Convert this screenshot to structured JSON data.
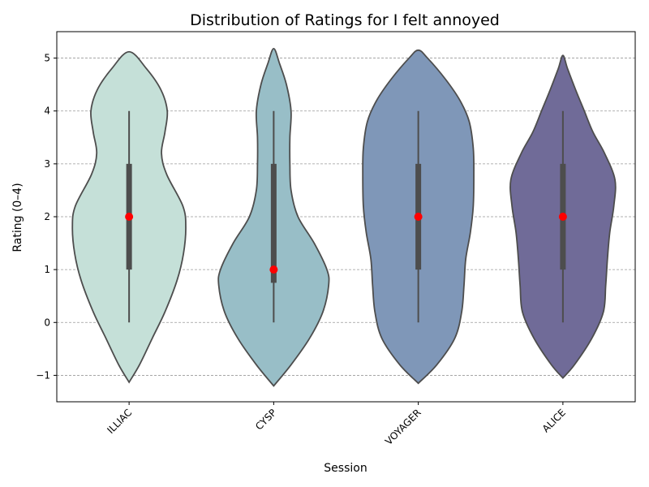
{
  "chart_data": {
    "type": "violin",
    "title": "Distribution of Ratings for I felt annoyed",
    "xlabel": "Session",
    "ylabel": "Rating (0–4)",
    "ylim": [
      -1.5,
      5.5
    ],
    "yticks": [
      -1,
      0,
      1,
      2,
      3,
      4,
      5
    ],
    "ytick_labels": [
      "−1",
      "0",
      "1",
      "2",
      "3",
      "4",
      "5"
    ],
    "grid": true,
    "categories": [
      "ILLIAC",
      "CYSP",
      "VOYAGER",
      "ALICE"
    ],
    "colors": [
      "#c5e0d8",
      "#98bec7",
      "#7f97b8",
      "#706b98"
    ],
    "median_color": "#ff0000",
    "box_color": "#4d4d4d",
    "edge_color": "#4d4d4d",
    "sessions": [
      {
        "name": "ILLIAC",
        "min": 0,
        "q1": 1,
        "median": 2,
        "q3": 3,
        "max": 4,
        "shape": [
          [
            -1.13,
            0.0
          ],
          [
            -0.8,
            0.18
          ],
          [
            -0.3,
            0.4
          ],
          [
            0.2,
            0.62
          ],
          [
            0.8,
            0.83
          ],
          [
            1.3,
            0.94
          ],
          [
            1.8,
            0.98
          ],
          [
            2.2,
            0.93
          ],
          [
            2.8,
            0.65
          ],
          [
            3.2,
            0.56
          ],
          [
            3.6,
            0.62
          ],
          [
            4.0,
            0.66
          ],
          [
            4.4,
            0.55
          ],
          [
            4.8,
            0.3
          ],
          [
            5.12,
            0.0
          ]
        ]
      },
      {
        "name": "CYSP",
        "min": 0,
        "q1": 0.75,
        "median": 1,
        "q3": 3,
        "max": 4,
        "shape": [
          [
            -1.2,
            0.0
          ],
          [
            -0.8,
            0.3
          ],
          [
            -0.3,
            0.62
          ],
          [
            0.2,
            0.85
          ],
          [
            0.7,
            0.95
          ],
          [
            1.0,
            0.92
          ],
          [
            1.5,
            0.7
          ],
          [
            2.0,
            0.42
          ],
          [
            2.5,
            0.3
          ],
          [
            3.0,
            0.28
          ],
          [
            3.5,
            0.28
          ],
          [
            4.0,
            0.3
          ],
          [
            4.5,
            0.22
          ],
          [
            4.9,
            0.1
          ],
          [
            5.18,
            0.0
          ]
        ]
      },
      {
        "name": "VOYAGER",
        "min": 0,
        "q1": 1,
        "median": 2,
        "q3": 3,
        "max": 4,
        "shape": [
          [
            -1.15,
            0.0
          ],
          [
            -0.8,
            0.32
          ],
          [
            -0.3,
            0.63
          ],
          [
            0.2,
            0.75
          ],
          [
            0.7,
            0.79
          ],
          [
            1.2,
            0.82
          ],
          [
            1.7,
            0.9
          ],
          [
            2.2,
            0.95
          ],
          [
            2.8,
            0.96
          ],
          [
            3.3,
            0.95
          ],
          [
            3.8,
            0.88
          ],
          [
            4.2,
            0.72
          ],
          [
            4.6,
            0.47
          ],
          [
            5.0,
            0.16
          ],
          [
            5.15,
            0.0
          ]
        ]
      },
      {
        "name": "ALICE",
        "min": 0,
        "q1": 1,
        "median": 2,
        "q3": 3,
        "max": 4,
        "shape": [
          [
            -1.05,
            0.0
          ],
          [
            -0.8,
            0.2
          ],
          [
            -0.3,
            0.5
          ],
          [
            0.2,
            0.7
          ],
          [
            0.7,
            0.74
          ],
          [
            1.2,
            0.77
          ],
          [
            1.7,
            0.81
          ],
          [
            2.2,
            0.88
          ],
          [
            2.7,
            0.9
          ],
          [
            3.2,
            0.72
          ],
          [
            3.6,
            0.52
          ],
          [
            4.0,
            0.37
          ],
          [
            4.4,
            0.22
          ],
          [
            4.8,
            0.08
          ],
          [
            5.05,
            0.0
          ]
        ]
      }
    ]
  }
}
